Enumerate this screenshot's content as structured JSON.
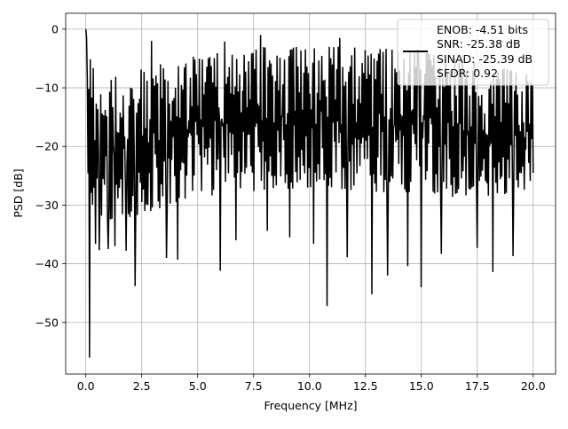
{
  "chart_data": {
    "type": "line",
    "title": "",
    "xlabel": "Frequency [MHz]",
    "ylabel": "PSD [dB]",
    "xlim": [
      -0.9,
      21.0
    ],
    "ylim": [
      -58.8,
      2.7
    ],
    "x_ticks": [
      0.0,
      2.5,
      5.0,
      7.5,
      10.0,
      12.5,
      15.0,
      17.5,
      20.0
    ],
    "x_tick_labels": [
      "0.0",
      "2.5",
      "5.0",
      "7.5",
      "10.0",
      "12.5",
      "15.0",
      "17.5",
      "20.0"
    ],
    "y_ticks": [
      0,
      -10,
      -20,
      -30,
      -40,
      -50
    ],
    "y_tick_labels": [
      "0",
      "−10",
      "−20",
      "−30",
      "−40",
      "−50"
    ],
    "grid": true,
    "legend": {
      "placement": "top-right",
      "entries": [
        "ENOB: -4.51 bits",
        "SNR: -25.38 dB",
        "SINAD: -25.39 dB",
        "SFDR: 0.92"
      ]
    },
    "series": [
      {
        "color": "#000000",
        "x_range": [
          0.0,
          20.0
        ],
        "points": 600,
        "band_top_db": [
          [
            0,
            0
          ],
          [
            0.5,
            -9
          ],
          [
            2,
            -7
          ],
          [
            4,
            -5
          ],
          [
            6,
            -4
          ],
          [
            8,
            -3
          ],
          [
            12,
            -3
          ],
          [
            16,
            -4
          ],
          [
            18,
            -6
          ],
          [
            20,
            -8
          ]
        ],
        "band_bottom_db": [
          [
            0,
            -30
          ],
          [
            1,
            -33
          ],
          [
            3,
            -31
          ],
          [
            6,
            -28
          ],
          [
            10,
            -27
          ],
          [
            14,
            -28
          ],
          [
            18,
            -29
          ],
          [
            20,
            -27
          ]
        ],
        "peaks": [
          [
            0.0,
            0.0
          ],
          [
            0.05,
            -1.5
          ],
          [
            2.95,
            -2.0
          ],
          [
            6.2,
            -2.1
          ],
          [
            7.8,
            -1.0
          ],
          [
            11.35,
            -1.5
          ],
          [
            14.85,
            -3.5
          ]
        ],
        "dips": [
          [
            0.18,
            -56.0
          ],
          [
            0.42,
            -36.6
          ],
          [
            0.6,
            -37.7
          ],
          [
            1.0,
            -37.5
          ],
          [
            1.3,
            -37.0
          ],
          [
            1.8,
            -37.8
          ],
          [
            2.2,
            -43.8
          ],
          [
            3.6,
            -39.0
          ],
          [
            4.1,
            -39.3
          ],
          [
            6.0,
            -41.2
          ],
          [
            6.7,
            -36.0
          ],
          [
            8.1,
            -34.4
          ],
          [
            9.1,
            -35.5
          ],
          [
            10.2,
            -36.6
          ],
          [
            10.8,
            -47.2
          ],
          [
            11.7,
            -38.9
          ],
          [
            12.8,
            -45.2
          ],
          [
            13.5,
            -42.0
          ],
          [
            14.4,
            -40.4
          ],
          [
            15.0,
            -44.0
          ],
          [
            15.9,
            -38.3
          ],
          [
            17.5,
            -37.3
          ],
          [
            18.2,
            -41.4
          ],
          [
            19.1,
            -38.7
          ],
          [
            20.0,
            -24.5
          ]
        ]
      }
    ]
  }
}
